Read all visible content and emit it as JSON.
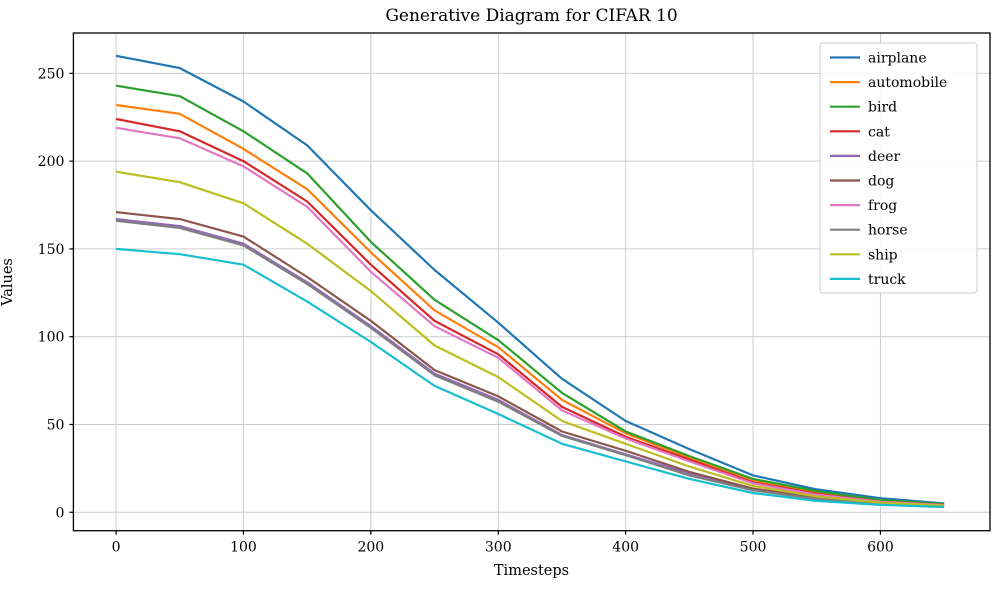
{
  "figure": {
    "background": "#ffffff",
    "grid_color": "#cccccc",
    "spine_color": "#000000",
    "legend_border_color": "#cccccc"
  },
  "chart_data": {
    "type": "line",
    "title": "Generative Diagram for CIFAR 10",
    "xlabel": "Timesteps",
    "ylabel": "Values",
    "grid": true,
    "legend_position": "upper right",
    "xlim": [
      -33.5,
      686
    ],
    "ylim": [
      -10.5,
      273
    ],
    "xticks": [
      0,
      100,
      200,
      300,
      400,
      500,
      600
    ],
    "yticks": [
      0,
      50,
      100,
      150,
      200,
      250
    ],
    "x": [
      0,
      50,
      100,
      150,
      200,
      250,
      300,
      350,
      400,
      450,
      500,
      550,
      600,
      650
    ],
    "series": [
      {
        "name": "airplane",
        "color": "#1f77b4",
        "values": [
          260,
          253,
          234,
          209,
          172,
          138,
          108,
          76,
          52,
          36,
          21,
          13,
          8,
          5
        ]
      },
      {
        "name": "automobile",
        "color": "#ff7f0e",
        "values": [
          232,
          227,
          207,
          184,
          148,
          115,
          94,
          64,
          45,
          31,
          18,
          11,
          6.5,
          4.4
        ]
      },
      {
        "name": "bird",
        "color": "#2ca02c",
        "values": [
          243,
          237,
          217,
          193,
          154,
          121,
          98,
          68,
          46,
          32,
          19,
          12,
          7,
          4.7
        ]
      },
      {
        "name": "cat",
        "color": "#d62728",
        "values": [
          224,
          217,
          200,
          177,
          141,
          109,
          90,
          60,
          43,
          30,
          17,
          10.5,
          6,
          4.2
        ]
      },
      {
        "name": "deer",
        "color": "#9467bd",
        "values": [
          167,
          163,
          153,
          131,
          106,
          79,
          64,
          44,
          33,
          22,
          13,
          8,
          4.8,
          3.4
        ]
      },
      {
        "name": "dog",
        "color": "#8c564b",
        "values": [
          171,
          167,
          157,
          134,
          109,
          81,
          66,
          46,
          35,
          23,
          13.5,
          8.5,
          5,
          3.6
        ]
      },
      {
        "name": "frog",
        "color": "#e377c2",
        "values": [
          219,
          213,
          197,
          174,
          137,
          106,
          88,
          58,
          42,
          29,
          16.5,
          10,
          6,
          4.1
        ]
      },
      {
        "name": "horse",
        "color": "#7f7f7f",
        "values": [
          166,
          162,
          152,
          130,
          105,
          78,
          63,
          43.5,
          32.5,
          21,
          12.5,
          7.5,
          4.6,
          3.3
        ]
      },
      {
        "name": "ship",
        "color": "#bcbd22",
        "values": [
          194,
          188,
          176,
          153,
          126,
          95,
          77,
          52,
          39,
          26,
          15,
          9,
          5.5,
          3.8
        ]
      },
      {
        "name": "truck",
        "color": "#17becf",
        "values": [
          150,
          147,
          141,
          120,
          97,
          72,
          56,
          39,
          29,
          19,
          11,
          6.5,
          4.2,
          3.0
        ]
      }
    ]
  }
}
